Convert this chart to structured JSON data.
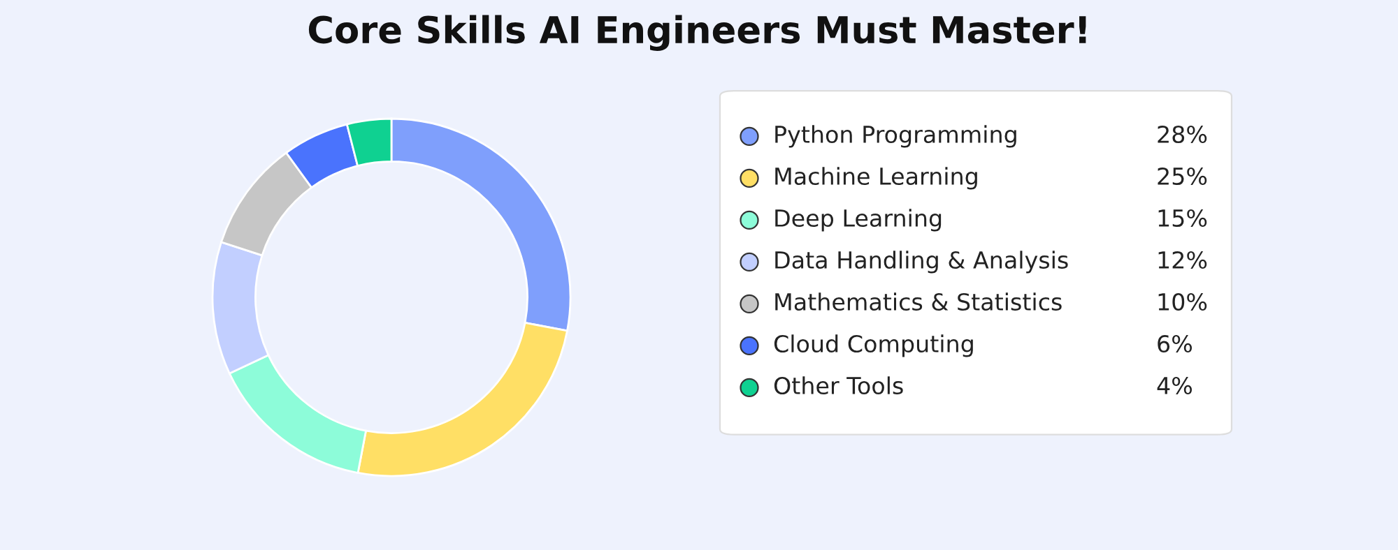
{
  "chart_data": {
    "type": "donut",
    "title": "Core Skills AI Engineers Must Master!",
    "categories": [
      "Python Programming",
      "Machine Learning",
      "Deep Learning",
      "Data Handling & Analysis",
      "Mathematics & Statistics",
      "Cloud Computing",
      "Other Tools"
    ],
    "values": [
      28,
      25,
      15,
      12,
      10,
      6,
      4
    ],
    "colors": [
      "#7f9ffc",
      "#ffdf65",
      "#8dfcd9",
      "#c2cfff",
      "#c6c6c6",
      "#4a73fd",
      "#0fd191"
    ],
    "value_labels": [
      "28%",
      "25%",
      "15%",
      "12%",
      "10%",
      "6%",
      "4%"
    ],
    "legend": "right"
  }
}
